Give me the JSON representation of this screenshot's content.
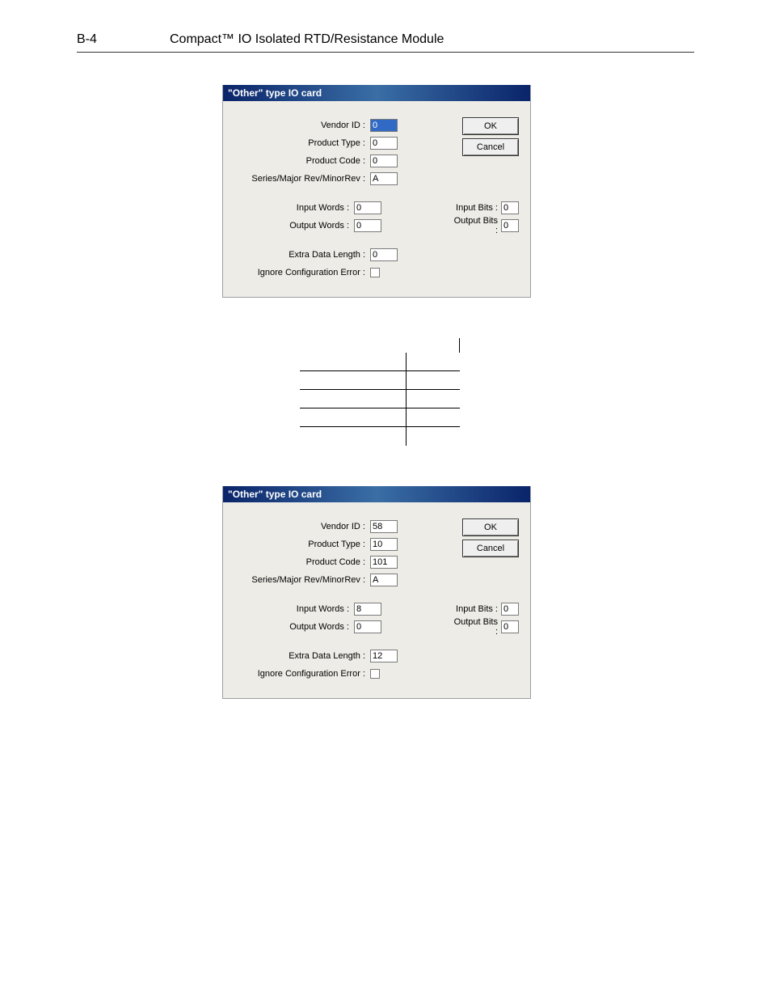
{
  "header": {
    "page_num": "B-4",
    "title": "Compact™ IO Isolated RTD/Resistance Module"
  },
  "dialog_common": {
    "title": "\"Other\" type IO card",
    "labels": {
      "vendor_id": "Vendor ID :",
      "product_type": "Product Type :",
      "product_code": "Product Code :",
      "series": "Series/Major Rev/MinorRev :",
      "input_words": "Input Words :",
      "output_words": "Output Words :",
      "input_bits": "Input Bits :",
      "output_bits": "Output Bits :",
      "extra_data_length": "Extra Data Length :",
      "ignore_config_error": "Ignore Configuration Error :"
    },
    "buttons": {
      "ok": "OK",
      "cancel": "Cancel"
    }
  },
  "dialog1": {
    "values": {
      "vendor_id": "0",
      "product_type": "0",
      "product_code": "0",
      "series": "A",
      "input_words": "0",
      "output_words": "0",
      "input_bits": "0",
      "output_bits": "0",
      "extra_data_length": "0"
    },
    "vendor_id_selected": true
  },
  "dialog2": {
    "values": {
      "vendor_id": "58",
      "product_type": "10",
      "product_code": "101",
      "series": "A",
      "input_words": "8",
      "output_words": "0",
      "input_bits": "0",
      "output_bits": "0",
      "extra_data_length": "12"
    },
    "vendor_id_selected": false
  },
  "mid_table_rows": 4
}
